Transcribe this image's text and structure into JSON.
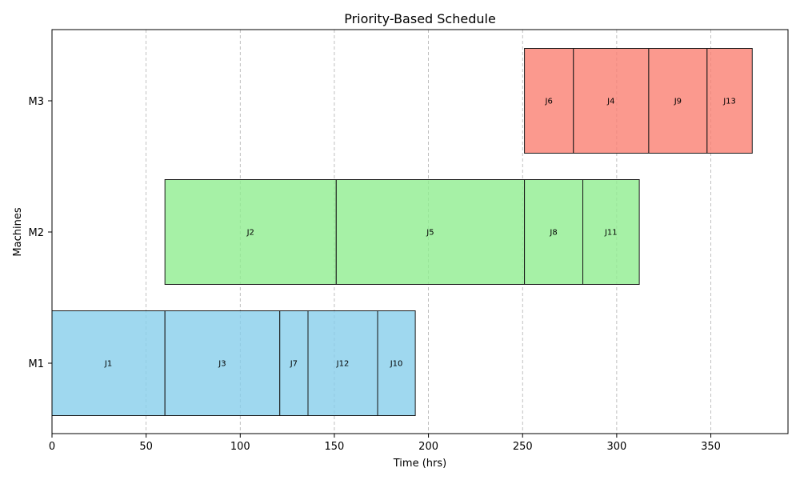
{
  "chart_data": {
    "type": "gantt",
    "title": "Priority-Based Schedule",
    "xlabel": "Time (hrs)",
    "ylabel": "Machines",
    "xlim": [
      0,
      391
    ],
    "xticks": [
      0,
      50,
      100,
      150,
      200,
      250,
      300,
      350
    ],
    "grid": "x-dashed",
    "machines": [
      "M1",
      "M2",
      "M3"
    ],
    "colors": {
      "M1": "#87ceeb",
      "M2": "#90ee90",
      "M3": "#fa8072"
    },
    "tasks": [
      {
        "machine": "M1",
        "job": "J1",
        "start": 0,
        "end": 60
      },
      {
        "machine": "M1",
        "job": "J3",
        "start": 60,
        "end": 121
      },
      {
        "machine": "M1",
        "job": "J7",
        "start": 121,
        "end": 136
      },
      {
        "machine": "M1",
        "job": "J12",
        "start": 136,
        "end": 173
      },
      {
        "machine": "M1",
        "job": "J10",
        "start": 173,
        "end": 193
      },
      {
        "machine": "M2",
        "job": "J2",
        "start": 60,
        "end": 151
      },
      {
        "machine": "M2",
        "job": "J5",
        "start": 151,
        "end": 251
      },
      {
        "machine": "M2",
        "job": "J8",
        "start": 251,
        "end": 282
      },
      {
        "machine": "M2",
        "job": "J11",
        "start": 282,
        "end": 312
      },
      {
        "machine": "M3",
        "job": "J6",
        "start": 251,
        "end": 277
      },
      {
        "machine": "M3",
        "job": "J4",
        "start": 277,
        "end": 317
      },
      {
        "machine": "M3",
        "job": "J9",
        "start": 317,
        "end": 348
      },
      {
        "machine": "M3",
        "job": "J13",
        "start": 348,
        "end": 372
      }
    ]
  }
}
